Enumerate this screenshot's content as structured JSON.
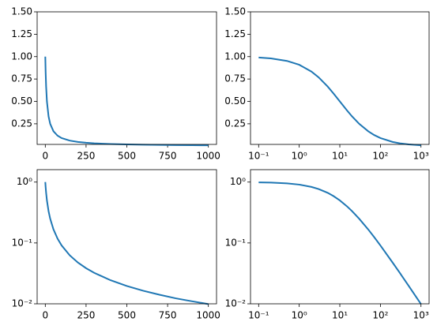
{
  "chart_data": [
    {
      "type": "line",
      "logx": false,
      "logy": false,
      "x": [
        0,
        2,
        5,
        10,
        20,
        30,
        50,
        75,
        100,
        150,
        200,
        250,
        300,
        400,
        500,
        600,
        700,
        800,
        900,
        1000
      ],
      "series": [
        {
          "color": "#1f77b4",
          "values": [
            1,
            0.833,
            0.667,
            0.5,
            0.333,
            0.25,
            0.167,
            0.118,
            0.0909,
            0.0625,
            0.0476,
            0.0385,
            0.0323,
            0.0244,
            0.0196,
            0.0164,
            0.0141,
            0.0123,
            0.011,
            0.0099
          ]
        }
      ],
      "xlim": [
        -50,
        1050
      ],
      "ylim": [
        0.02,
        1.5
      ],
      "xticks": [
        0,
        250,
        500,
        750,
        1000
      ],
      "yticks": [
        {
          "value": 0.25,
          "label": "0.25"
        },
        {
          "value": 0.5,
          "label": "0.50"
        },
        {
          "value": 0.75,
          "label": "0.75"
        },
        {
          "value": 1,
          "label": "1.00"
        },
        {
          "value": 1.25,
          "label": "1.25"
        },
        {
          "value": 1.5,
          "label": "1.50"
        }
      ]
    },
    {
      "type": "line",
      "logx": true,
      "logy": false,
      "x": [
        0.1,
        0.2,
        0.5,
        1,
        2,
        3,
        5,
        7,
        10,
        15,
        20,
        30,
        50,
        70,
        100,
        200,
        300,
        500,
        1000
      ],
      "series": [
        {
          "color": "#1f77b4",
          "values": [
            0.99,
            0.98,
            0.952,
            0.909,
            0.833,
            0.769,
            0.667,
            0.588,
            0.5,
            0.4,
            0.333,
            0.25,
            0.167,
            0.125,
            0.0909,
            0.0476,
            0.0323,
            0.0196,
            0.0099
          ]
        }
      ],
      "xlim": [
        0.063,
        1585
      ],
      "ylim": [
        0.02,
        1.5
      ],
      "xticks": [
        {
          "value": 0.1,
          "label": "10⁻¹"
        },
        {
          "value": 1,
          "label": "10⁰"
        },
        {
          "value": 10,
          "label": "10¹"
        },
        {
          "value": 100,
          "label": "10²"
        },
        {
          "value": 1000,
          "label": "10³"
        }
      ],
      "yticks": [
        {
          "value": 0.25,
          "label": "0.25"
        },
        {
          "value": 0.5,
          "label": "0.50"
        },
        {
          "value": 0.75,
          "label": "0.75"
        },
        {
          "value": 1,
          "label": "1.00"
        },
        {
          "value": 1.25,
          "label": "1.25"
        },
        {
          "value": 1.5,
          "label": "1.50"
        }
      ]
    },
    {
      "type": "line",
      "logx": false,
      "logy": true,
      "x": [
        0,
        2,
        5,
        10,
        20,
        30,
        50,
        75,
        100,
        150,
        200,
        250,
        300,
        400,
        500,
        600,
        700,
        800,
        900,
        1000
      ],
      "series": [
        {
          "color": "#1f77b4",
          "values": [
            1,
            0.833,
            0.667,
            0.5,
            0.333,
            0.25,
            0.167,
            0.118,
            0.0909,
            0.0625,
            0.0476,
            0.0385,
            0.0323,
            0.0244,
            0.0196,
            0.0164,
            0.0141,
            0.0123,
            0.011,
            0.0099
          ]
        }
      ],
      "xlim": [
        -50,
        1050
      ],
      "ylim": [
        0.01,
        1.6
      ],
      "xticks": [
        0,
        250,
        500,
        750,
        1000
      ],
      "yticks": [
        {
          "value": 0.01,
          "label": "10⁻²"
        },
        {
          "value": 0.1,
          "label": "10⁻¹"
        },
        {
          "value": 1,
          "label": "10⁰"
        }
      ]
    },
    {
      "type": "line",
      "logx": true,
      "logy": true,
      "x": [
        0.1,
        0.2,
        0.5,
        1,
        2,
        3,
        5,
        7,
        10,
        15,
        20,
        30,
        50,
        70,
        100,
        200,
        300,
        500,
        1000
      ],
      "series": [
        {
          "color": "#1f77b4",
          "values": [
            0.99,
            0.98,
            0.952,
            0.909,
            0.833,
            0.769,
            0.667,
            0.588,
            0.5,
            0.4,
            0.333,
            0.25,
            0.167,
            0.125,
            0.0909,
            0.0476,
            0.0323,
            0.0196,
            0.0099
          ]
        }
      ],
      "xlim": [
        0.063,
        1585
      ],
      "ylim": [
        0.01,
        1.6
      ],
      "xticks": [
        {
          "value": 0.1,
          "label": "10⁻¹"
        },
        {
          "value": 1,
          "label": "10⁰"
        },
        {
          "value": 10,
          "label": "10¹"
        },
        {
          "value": 100,
          "label": "10²"
        },
        {
          "value": 1000,
          "label": "10³"
        }
      ],
      "yticks": [
        {
          "value": 0.01,
          "label": "10⁻²"
        },
        {
          "value": 0.1,
          "label": "10⁻¹"
        },
        {
          "value": 1,
          "label": "10⁰"
        }
      ]
    }
  ]
}
